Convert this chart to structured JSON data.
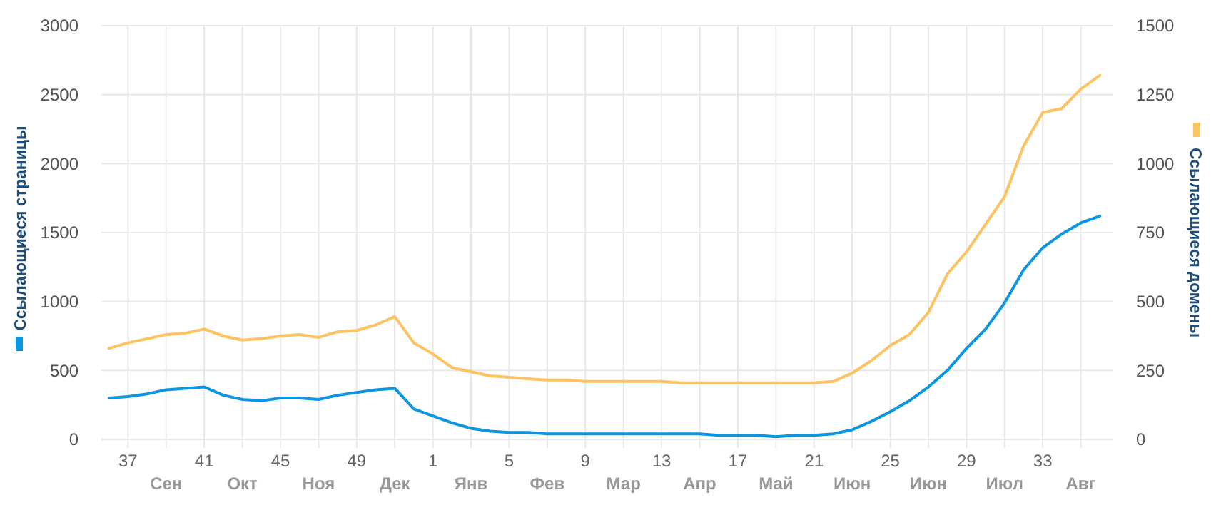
{
  "chart_data": {
    "type": "line",
    "categories": [
      null,
      "37",
      null,
      "Сен",
      null,
      "41",
      null,
      "Окт",
      null,
      "45",
      null,
      "Ноя",
      null,
      "49",
      null,
      "Дек",
      null,
      "1",
      null,
      "Янв",
      null,
      "5",
      null,
      "Фев",
      null,
      "9",
      null,
      "Мар",
      null,
      "13",
      null,
      "Апр",
      null,
      "17",
      null,
      "Май",
      null,
      "21",
      null,
      "Июн",
      null,
      "25",
      null,
      "Июн",
      null,
      "29",
      null,
      "Июл",
      null,
      "33",
      null,
      "Авг",
      null
    ],
    "ylim": [
      0,
      3000
    ],
    "yticks": [
      0,
      500,
      1000,
      1500,
      2000,
      2500,
      3000
    ],
    "y2lim": [
      0,
      1500
    ],
    "y2ticks": [
      0,
      250,
      500,
      750,
      1000,
      1250,
      1500
    ],
    "ylabel": "Ссылающиеся страницы",
    "y2label": "Ссылающиеся домены",
    "grid": true,
    "line_style": "solid",
    "series": [
      {
        "color": "#0d96e0",
        "values": [
          300,
          310,
          330,
          360,
          370,
          380,
          320,
          290,
          280,
          300,
          300,
          290,
          320,
          340,
          360,
          370,
          220,
          170,
          120,
          80,
          60,
          50,
          50,
          40,
          40,
          40,
          40,
          40,
          40,
          40,
          40,
          40,
          30,
          30,
          30,
          20,
          30,
          30,
          40,
          70,
          130,
          200,
          280,
          380,
          500,
          660,
          800,
          990,
          1230,
          1390,
          1490,
          1570,
          1620
        ]
      },
      {
        "color": "#fdc261",
        "axis": "y2",
        "values": [
          330,
          350,
          365,
          380,
          385,
          400,
          375,
          360,
          365,
          375,
          380,
          370,
          390,
          395,
          415,
          445,
          350,
          310,
          260,
          245,
          230,
          225,
          220,
          215,
          215,
          210,
          210,
          210,
          210,
          210,
          205,
          205,
          205,
          205,
          205,
          205,
          205,
          205,
          210,
          240,
          285,
          340,
          380,
          460,
          600,
          680,
          780,
          880,
          1065,
          1185,
          1200,
          1270,
          1320
        ]
      }
    ]
  }
}
